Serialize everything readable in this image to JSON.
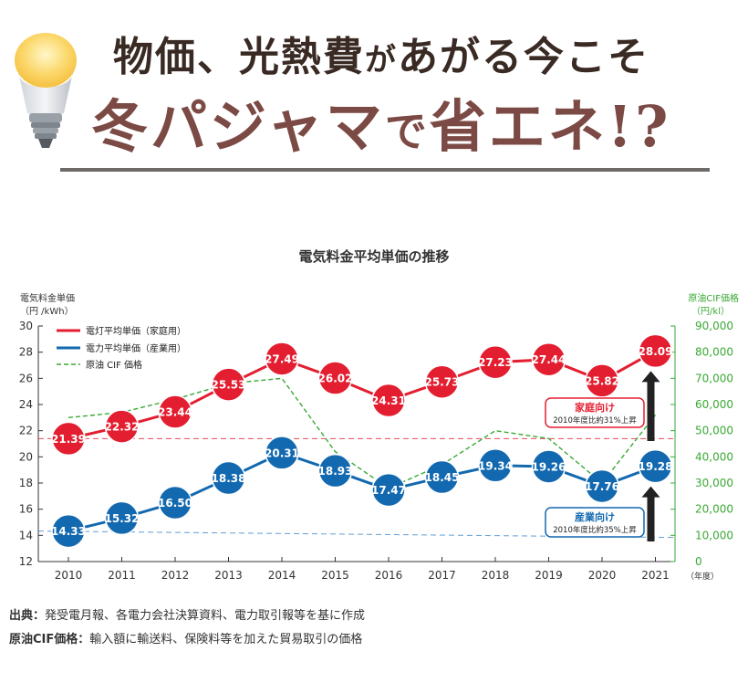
{
  "headline": {
    "line1_a": "物価、光熱費",
    "line1_b": "が",
    "line1_c": "あがる今こそ",
    "line2_a": "冬パジャマ",
    "line2_b": "で",
    "line2_c": "省エネ!?"
  },
  "icons": {
    "bulb": "light-bulb-icon"
  },
  "colors": {
    "red": "#e31e30",
    "blue": "#1369b0",
    "green": "#3aa935",
    "dark": "#222222"
  },
  "chart_data": {
    "type": "line",
    "title": "電気料金平均単価の推移",
    "ylabel_left": [
      "電気料金単価",
      "（円 /kWh）"
    ],
    "ylabel_right": [
      "原油CIF価格",
      "（円/kl）"
    ],
    "x_unit": "（年度）",
    "x": [
      "2010",
      "2011",
      "2012",
      "2013",
      "2014",
      "2015",
      "2016",
      "2017",
      "2018",
      "2019",
      "2020",
      "2021"
    ],
    "ylim_left": [
      12,
      30
    ],
    "yticks_left": [
      "12",
      "14",
      "16",
      "18",
      "20",
      "22",
      "24",
      "26",
      "28",
      "30"
    ],
    "ylim_right": [
      0,
      90000
    ],
    "yticks_right": [
      "0",
      "10,000",
      "20,000",
      "30,000",
      "40,000",
      "50,000",
      "60,000",
      "70,000",
      "80,000",
      "90,000"
    ],
    "series": [
      {
        "name": "電灯平均単価（家庭用）",
        "axis": "left",
        "values": [
          21.39,
          22.32,
          23.44,
          25.53,
          27.49,
          26.02,
          24.31,
          25.73,
          27.23,
          27.44,
          25.82,
          28.09
        ],
        "labels": [
          "21.39",
          "22.32",
          "23.44",
          "25.53",
          "27.49",
          "26.02",
          "24.31",
          "25.73",
          "27.23",
          "27.44",
          "25.82",
          "28.09"
        ]
      },
      {
        "name": "電力平均単価（産業用）",
        "axis": "left",
        "values": [
          14.33,
          15.32,
          16.5,
          18.38,
          20.31,
          18.93,
          17.47,
          18.45,
          19.34,
          19.26,
          17.76,
          19.28
        ],
        "labels": [
          "14.33",
          "15.32",
          "16.50",
          "18.38",
          "20.31",
          "18.93",
          "17.47",
          "18.45",
          "19.34",
          "19.26",
          "17.76",
          "19.28"
        ]
      },
      {
        "name": "原油 CIF 価格",
        "axis": "right",
        "values": [
          55000,
          57000,
          62000,
          68000,
          70000,
          42000,
          28000,
          37000,
          50000,
          47000,
          30000,
          56000
        ]
      }
    ],
    "reference_lines": [
      {
        "series": "red",
        "value": 21.39
      },
      {
        "series": "blue",
        "value": 14.33
      }
    ],
    "annotations": [
      {
        "title": "家庭向け",
        "sub": "2010年度比約31%上昇"
      },
      {
        "title": "産業向け",
        "sub": "2010年度比約35%上昇"
      }
    ],
    "legend_position": "top-left",
    "grid": false
  },
  "notes": [
    {
      "label": "出典：",
      "text": "発受電月報、各電力会社決算資料、電力取引報等を基に作成"
    },
    {
      "label": "原油CIF価格：",
      "text": "輸入額に輸送料、保険料等を加えた貿易取引の価格"
    }
  ]
}
